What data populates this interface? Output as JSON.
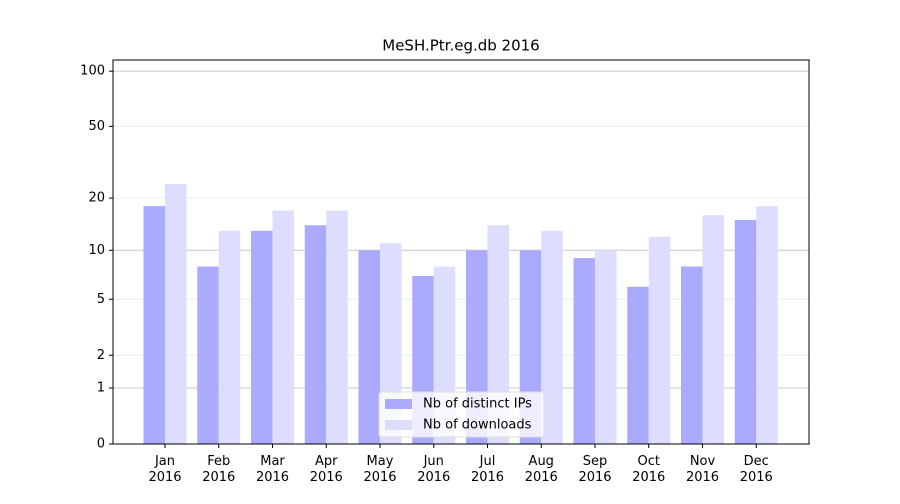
{
  "chart_data": {
    "type": "bar",
    "title": "MeSH.Ptr.eg.db 2016",
    "categories": [
      "Jan 2016",
      "Feb 2016",
      "Mar 2016",
      "Apr 2016",
      "May 2016",
      "Jun 2016",
      "Jul 2016",
      "Aug 2016",
      "Sep 2016",
      "Oct 2016",
      "Nov 2016",
      "Dec 2016"
    ],
    "series": [
      {
        "name": "Nb of distinct IPs",
        "color": "#aaaaff",
        "values": [
          18,
          8,
          13,
          14,
          10,
          7,
          10,
          10,
          9,
          6,
          8,
          15
        ]
      },
      {
        "name": "Nb of downloads",
        "color": "#ddddff",
        "values": [
          24,
          13,
          17,
          17,
          11,
          8,
          14,
          13,
          10,
          12,
          16,
          18
        ]
      }
    ],
    "yscale": "log1p",
    "ylim": [
      0,
      115
    ],
    "yticks": [
      0,
      1,
      2,
      5,
      10,
      20,
      50,
      100
    ],
    "grid": true,
    "legend": "lower center"
  }
}
